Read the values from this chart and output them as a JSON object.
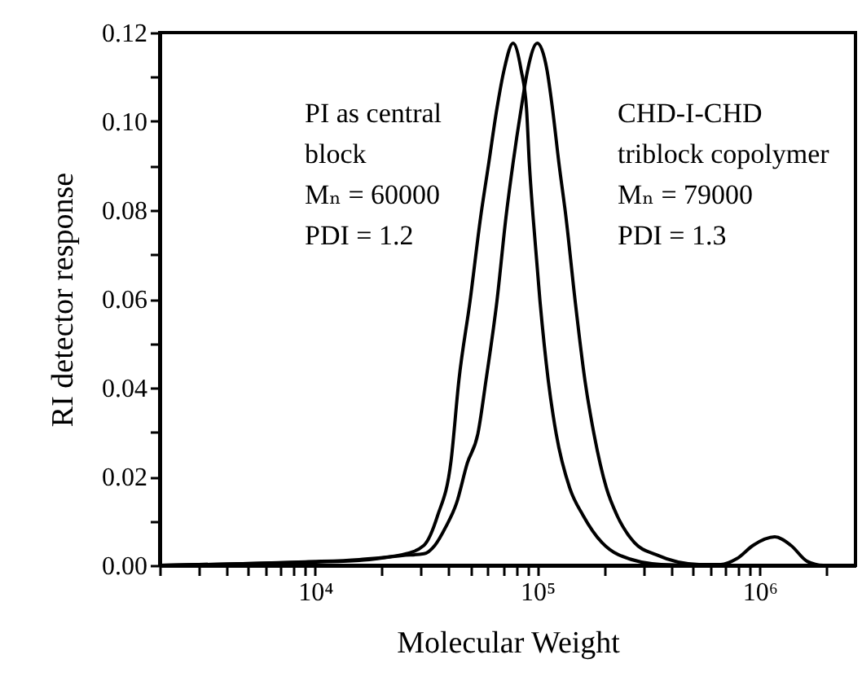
{
  "chart_data": {
    "type": "line",
    "xlabel": "Molecular Weight",
    "ylabel": "RI detector response",
    "log": "x",
    "grid": false,
    "legend": false,
    "xlim": [
      2000,
      2700000
    ],
    "ylim": [
      0,
      0.12
    ],
    "xticks": [
      {
        "value": 2000,
        "label": null
      },
      {
        "value": 3000,
        "label": null
      },
      {
        "value": 4000,
        "label": null
      },
      {
        "value": 5000,
        "label": null
      },
      {
        "value": 6000,
        "label": null
      },
      {
        "value": 7000,
        "label": null
      },
      {
        "value": 8000,
        "label": null
      },
      {
        "value": 9000,
        "label": null
      },
      {
        "value": 10000,
        "label": "10⁴"
      },
      {
        "value": 20000,
        "label": null
      },
      {
        "value": 30000,
        "label": null
      },
      {
        "value": 40000,
        "label": null
      },
      {
        "value": 50000,
        "label": null
      },
      {
        "value": 60000,
        "label": null
      },
      {
        "value": 70000,
        "label": null
      },
      {
        "value": 80000,
        "label": null
      },
      {
        "value": 90000,
        "label": null
      },
      {
        "value": 100000,
        "label": "10⁵"
      },
      {
        "value": 200000,
        "label": null
      },
      {
        "value": 300000,
        "label": null
      },
      {
        "value": 400000,
        "label": null
      },
      {
        "value": 500000,
        "label": null
      },
      {
        "value": 600000,
        "label": null
      },
      {
        "value": 700000,
        "label": null
      },
      {
        "value": 800000,
        "label": null
      },
      {
        "value": 900000,
        "label": null
      },
      {
        "value": 1000000,
        "label": "10⁶"
      },
      {
        "value": 2000000,
        "label": null
      }
    ],
    "yticks": [
      {
        "value": 0,
        "label": "0.00"
      },
      {
        "value": 0.01,
        "label": null
      },
      {
        "value": 0.02,
        "label": "0.02"
      },
      {
        "value": 0.03,
        "label": null
      },
      {
        "value": 0.04,
        "label": "0.04"
      },
      {
        "value": 0.05,
        "label": null
      },
      {
        "value": 0.06,
        "label": "0.06"
      },
      {
        "value": 0.07,
        "label": null
      },
      {
        "value": 0.08,
        "label": "0.08"
      },
      {
        "value": 0.09,
        "label": null
      },
      {
        "value": 0.1,
        "label": "0.10"
      },
      {
        "value": 0.11,
        "label": null
      },
      {
        "value": 0.12,
        "label": "0.12"
      }
    ],
    "annotations": [
      "PI as central\nblock\nMₙ = 60000\nPDI = 1.2",
      "CHD-I-CHD\ntriblock copolymer\nMₙ = 79000\nPDI = 1.3"
    ],
    "series": [
      {
        "color": "#000000",
        "x": [
          2000,
          5180,
          9040,
          15800,
          24700,
          30900,
          35600,
          40900,
          44400,
          49800,
          55600,
          60500,
          65800,
          70800,
          77800,
          84600,
          89400,
          92000,
          95700,
          102800,
          111900,
          121600,
          139900,
          160800,
          195500,
          231300,
          361600,
          565000,
          2400000
        ],
        "values": [
          0,
          0.0004,
          0.0008,
          0.0013,
          0.0024,
          0.0045,
          0.0112,
          0.0235,
          0.0418,
          0.0595,
          0.0785,
          0.0907,
          0.1029,
          0.1115,
          0.1176,
          0.1115,
          0.1029,
          0.0907,
          0.0785,
          0.0595,
          0.0418,
          0.0296,
          0.0174,
          0.0112,
          0.0051,
          0.0024,
          0.0002,
          0,
          0
        ]
      },
      {
        "color": "#000000",
        "x": [
          2000,
          5180,
          9040,
          15800,
          24700,
          30900,
          34600,
          38600,
          43300,
          48400,
          54000,
          58800,
          65800,
          72300,
          77800,
          84600,
          90400,
          100000,
          110600,
          117000,
          125000,
          134500,
          148000,
          163600,
          179800,
          204600,
          228600,
          273500,
          342000,
          534600,
          668000,
          790000,
          935000,
          1170000,
          1383000,
          1637000,
          1934000,
          2400000
        ],
        "values": [
          0,
          0.0004,
          0.0007,
          0.0011,
          0.0022,
          0.0026,
          0.0045,
          0.0085,
          0.014,
          0.023,
          0.0296,
          0.0418,
          0.0595,
          0.0785,
          0.0907,
          0.1029,
          0.1115,
          0.1176,
          0.1115,
          0.1029,
          0.0907,
          0.0785,
          0.0595,
          0.0418,
          0.0296,
          0.0174,
          0.0112,
          0.0051,
          0.0024,
          0.0002,
          0.0002,
          0.0015,
          0.0045,
          0.0064,
          0.0045,
          0.0009,
          0,
          0
        ]
      }
    ]
  }
}
